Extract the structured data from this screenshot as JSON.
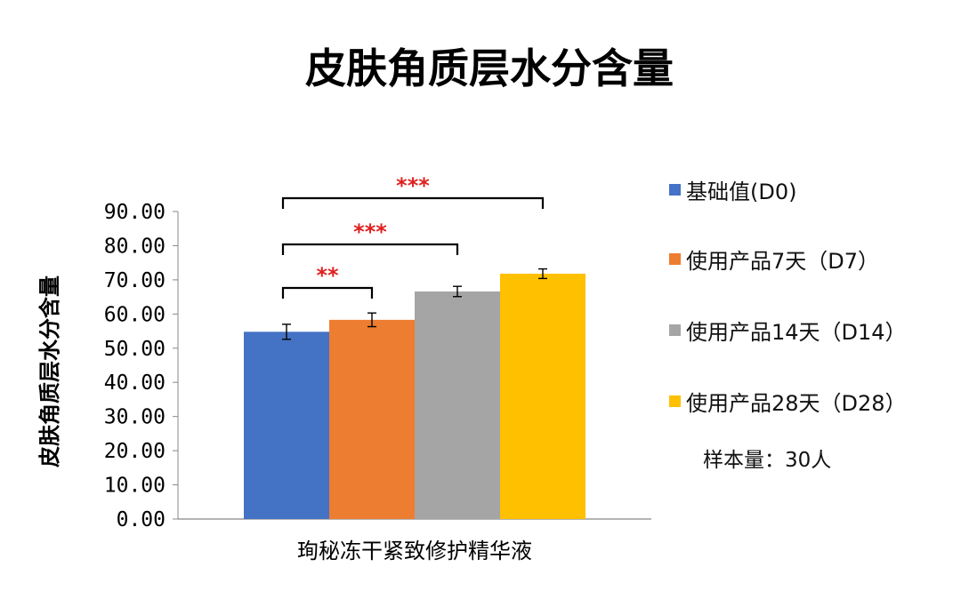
{
  "chart_data": {
    "type": "bar",
    "title": "皮肤角质层水分含量",
    "ylabel": "皮肤角质层水分含量",
    "xlabel": "",
    "categories": [
      "珣秘冻干紧致修护精华液"
    ],
    "ylim": [
      0,
      90
    ],
    "ytick_step": 10,
    "y_tick_labels": [
      "0.00",
      "10.00",
      "20.00",
      "30.00",
      "40.00",
      "50.00",
      "60.00",
      "70.00",
      "80.00",
      "90.00"
    ],
    "series": [
      {
        "name": "基础值(D0)",
        "values": [
          54.8
        ],
        "error": [
          2.2
        ],
        "color": "#4472C4"
      },
      {
        "name": "使用产品7天（D7）",
        "values": [
          58.3
        ],
        "error": [
          2.0
        ],
        "color": "#ED7D31"
      },
      {
        "name": "使用产品14天（D14）",
        "values": [
          66.6
        ],
        "error": [
          1.5
        ],
        "color": "#A5A5A5"
      },
      {
        "name": "使用产品28天（D28）",
        "values": [
          71.8
        ],
        "error": [
          1.4
        ],
        "color": "#FFC000"
      }
    ],
    "significance": [
      {
        "from": 0,
        "to": 1,
        "label": "**",
        "level": 0
      },
      {
        "from": 0,
        "to": 2,
        "label": "***",
        "level": 1
      },
      {
        "from": 0,
        "to": 3,
        "label": "***",
        "level": 2
      }
    ],
    "significance_color": "#E02020",
    "grid": false,
    "legend_position": "right"
  },
  "note": "样本量：30人"
}
